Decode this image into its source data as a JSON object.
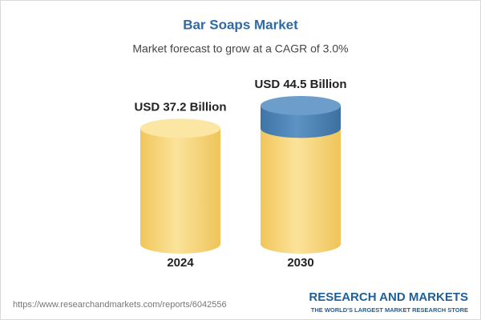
{
  "chart_data": {
    "type": "bar",
    "title": "Bar Soaps Market",
    "subtitle": "Market forecast to grow at a CAGR of 3.0%",
    "categories": [
      "2024",
      "2030"
    ],
    "values": [
      37.2,
      44.5
    ],
    "value_labels": [
      "USD 37.2 Billion",
      "USD 44.5 Billion"
    ],
    "color": "#f6d77c",
    "growth_color": "#4d84b6"
  },
  "footer": {
    "url": "https://www.researchandmarkets.com/reports/6042556",
    "brand": "RESEARCH AND MARKETS",
    "tagline": "THE WORLD'S LARGEST MARKET RESEARCH STORE"
  }
}
